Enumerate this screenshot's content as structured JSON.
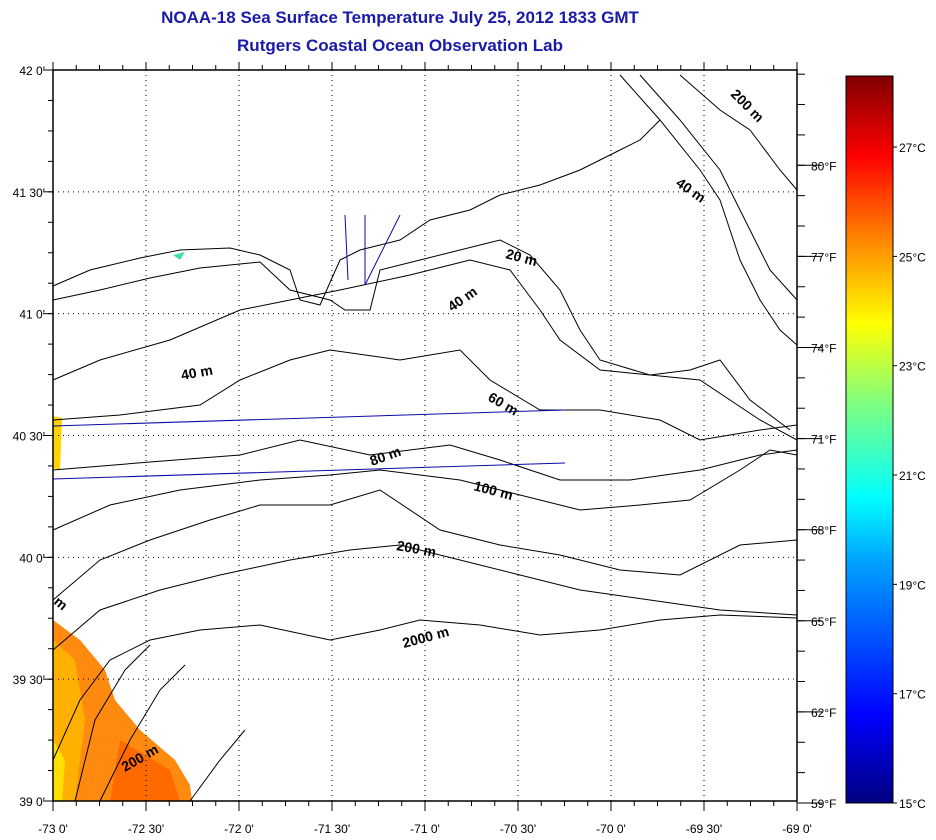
{
  "title": {
    "line1": "NOAA-18 Sea Surface Temperature July 25, 2012 1833 GMT",
    "line2": "Rutgers Coastal Ocean Observation Lab"
  },
  "map": {
    "lat_labels": [
      "42 0'",
      "41 30'",
      "41 0'",
      "40 30'",
      "40 0'",
      "39 30'",
      "39 0'"
    ],
    "lat_values": [
      42,
      41.5,
      41,
      40.5,
      40,
      39.5,
      39
    ],
    "lon_labels": [
      "-73 0'",
      "-72 30'",
      "-72 0'",
      "-71 30'",
      "-71 0'",
      "-70 30'",
      "-70 0'",
      "-69 30'",
      "-69 0'"
    ],
    "lon_values": [
      -73,
      -72.5,
      -72,
      -71.5,
      -71,
      -70.5,
      -70,
      -69.5,
      -69
    ],
    "contour_labels": [
      "200 m",
      "40 m",
      "20 m",
      "40 m",
      "40 m",
      "60 m",
      "80 m",
      "100 m",
      "200 m",
      "2000 m",
      "200 m",
      "m"
    ]
  },
  "colorbar": {
    "fahrenheit_labels": [
      "59°F",
      "62°F",
      "65°F",
      "68°F",
      "71°F",
      "74°F",
      "77°F",
      "80°F"
    ],
    "fahrenheit_values": [
      59,
      62,
      65,
      68,
      71,
      74,
      77,
      80
    ],
    "celsius_labels": [
      "15°C",
      "17°C",
      "19°C",
      "21°C",
      "23°C",
      "25°C",
      "27°C"
    ],
    "celsius_values": [
      15,
      17,
      19,
      21,
      23,
      25,
      27
    ],
    "range_c": [
      15,
      28.3
    ],
    "colors": [
      "#00007f",
      "#0000ff",
      "#007fff",
      "#00ffff",
      "#7fff7f",
      "#ffff00",
      "#ff7f00",
      "#ff0000",
      "#7f0000"
    ]
  }
}
